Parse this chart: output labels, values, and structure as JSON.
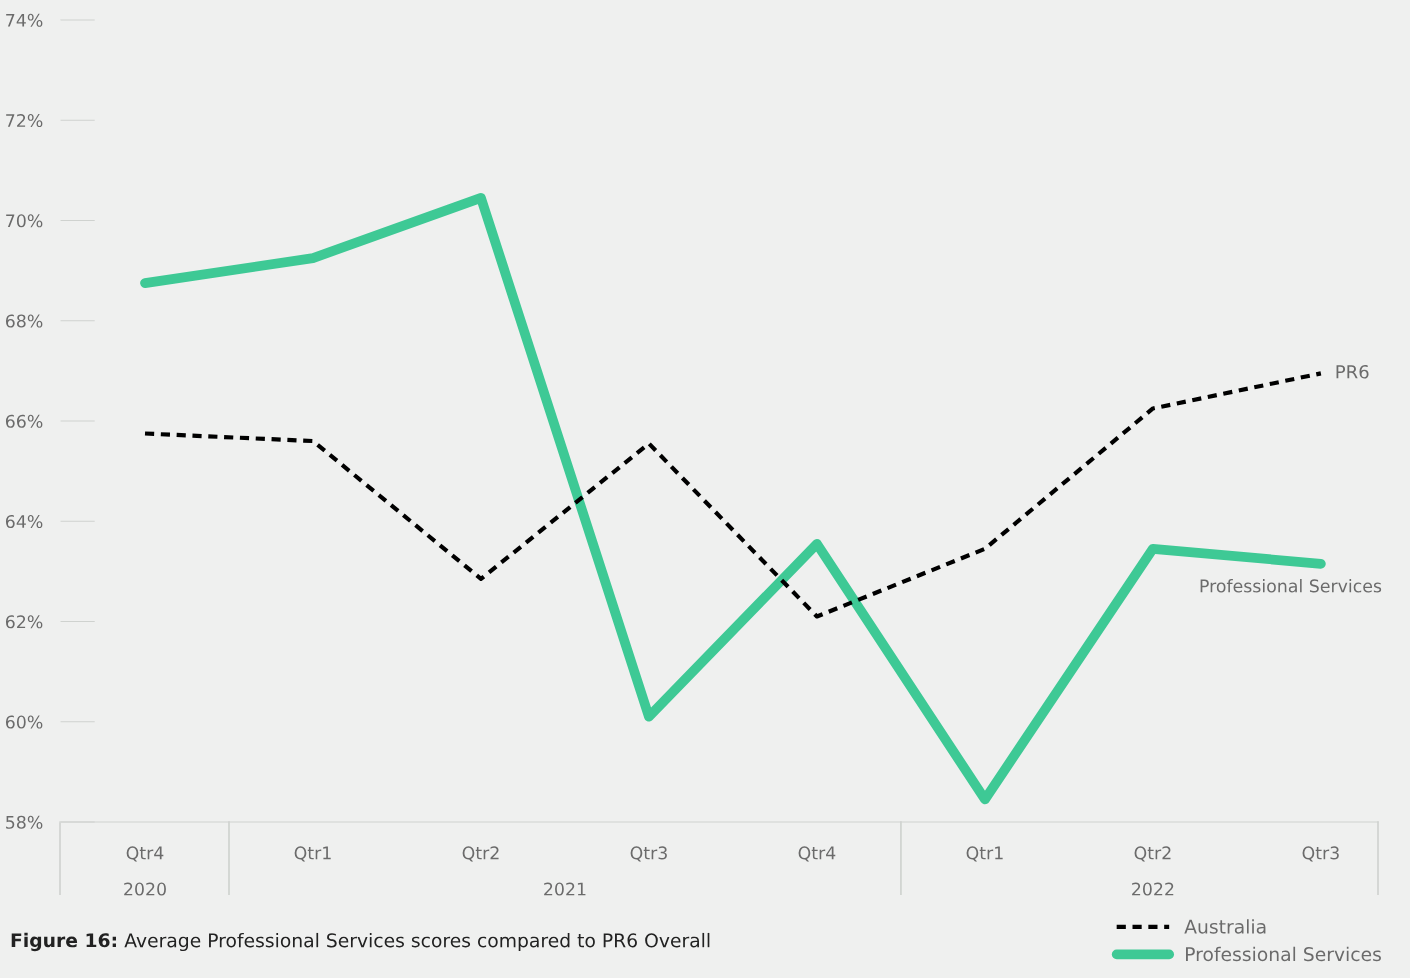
{
  "chart_data": {
    "type": "line",
    "categories": [
      "Qtr4",
      "Qtr1",
      "Qtr2",
      "Qtr3",
      "Qtr4",
      "Qtr1",
      "Qtr2",
      "Qtr3"
    ],
    "series": [
      {
        "name": "Australia",
        "color": "#000000",
        "line_style": "dashed",
        "values": [
          65.75,
          65.6,
          62.85,
          65.55,
          62.1,
          63.45,
          66.25,
          66.95
        ]
      },
      {
        "name": "Professional Services",
        "color": "#3ec995",
        "line_style": "solid",
        "values": [
          68.75,
          69.25,
          70.45,
          60.1,
          63.55,
          58.45,
          63.45,
          63.15
        ]
      }
    ],
    "ylim": [
      58,
      74
    ],
    "yticks": [
      {
        "value": 58,
        "label": "58%"
      },
      {
        "value": 60,
        "label": "60%"
      },
      {
        "value": 62,
        "label": "62%"
      },
      {
        "value": 64,
        "label": "64%"
      },
      {
        "value": 66,
        "label": "66%"
      },
      {
        "value": 68,
        "label": "68%"
      },
      {
        "value": 70,
        "label": "70%"
      },
      {
        "value": 72,
        "label": "72%"
      },
      {
        "value": 74,
        "label": "74%"
      }
    ],
    "grid": false,
    "legend": "bottom right",
    "marker": "none",
    "annotations": [
      "PR6",
      "Professional Services",
      "2020",
      "2021",
      "2022",
      "Figure 16: Average Professional Services scores compared to PR6 Overall"
    ]
  }
}
